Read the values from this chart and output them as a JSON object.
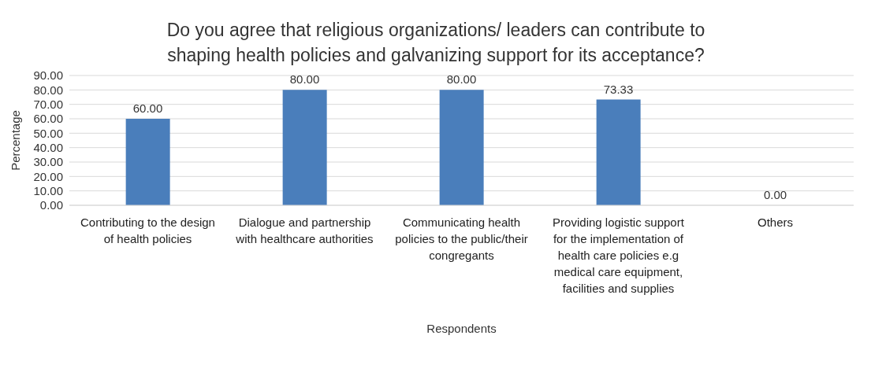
{
  "chart_data": {
    "type": "bar",
    "title": "Do you agree that religious organizations/ leaders can contribute to shaping health policies and galvanizing support for its acceptance?",
    "xlabel": "Respondents",
    "ylabel": "Percentage",
    "categories": [
      "Contributing to the design of health policies",
      "Dialogue and partnership with healthcare authorities",
      "Communicating health policies to the public/their congregants",
      "Providing logistic support for the implementation of health care policies e.g medical care equipment, facilities and supplies",
      "Others"
    ],
    "values": [
      60,
      80,
      80,
      73.33,
      0
    ],
    "value_labels": [
      "60.00",
      "80.00",
      "80.00",
      "73.33",
      "0.00"
    ],
    "color": "#4a7ebb",
    "ylim": [
      0,
      90
    ],
    "yticks": [
      {
        "value": 0,
        "label": "0.00"
      },
      {
        "value": 10,
        "label": "10.00"
      },
      {
        "value": 20,
        "label": "20.00"
      },
      {
        "value": 30,
        "label": "30.00"
      },
      {
        "value": 40,
        "label": "40.00"
      },
      {
        "value": 50,
        "label": "50.00"
      },
      {
        "value": 60,
        "label": "60.00"
      },
      {
        "value": 70,
        "label": "70.00"
      },
      {
        "value": 80,
        "label": "80.00"
      },
      {
        "value": 90,
        "label": "90.00"
      }
    ],
    "grid": "y",
    "legend": false
  }
}
